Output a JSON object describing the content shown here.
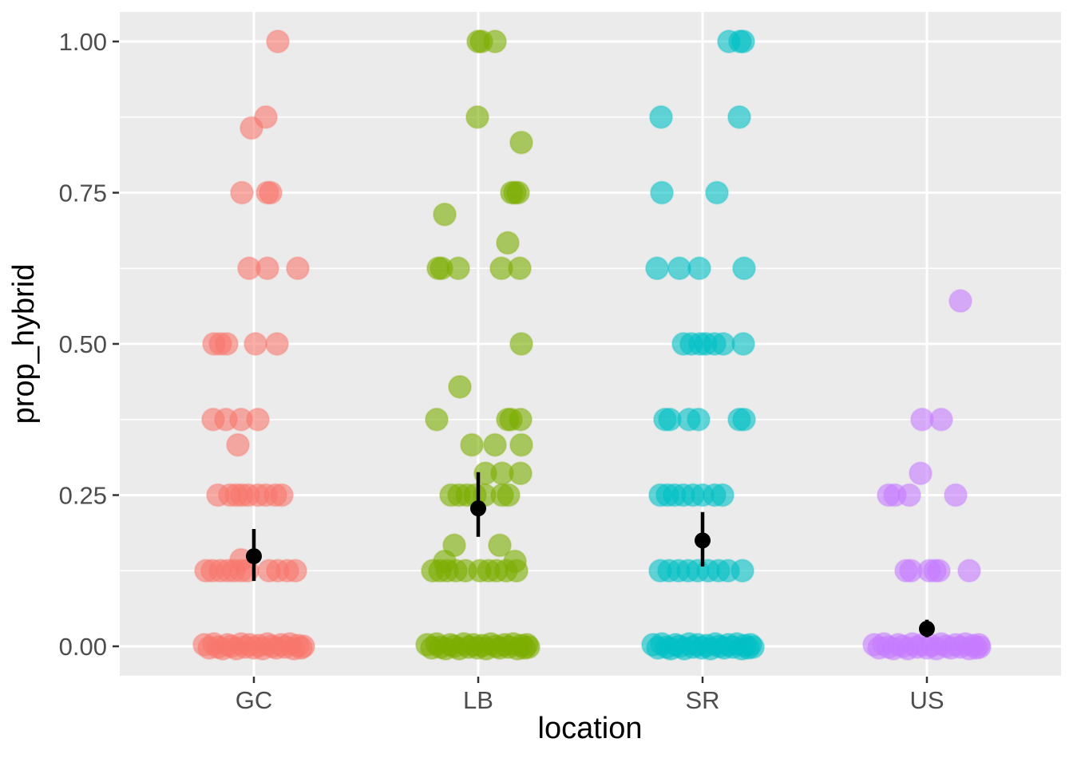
{
  "chart_data": {
    "type": "scatter",
    "subtype": "jittered-dotplot-with-mean-pointrange",
    "title": "",
    "xlabel": "location",
    "ylabel": "prop_hybrid",
    "categories": [
      "GC",
      "LB",
      "SR",
      "US"
    ],
    "y_ticks": [
      "1.00",
      "0.75",
      "0.50",
      "0.25",
      "0.00"
    ],
    "y_tick_values": [
      1.0,
      0.75,
      0.5,
      0.25,
      0.0
    ],
    "y_minor_values": [
      0.875,
      0.625,
      0.375,
      0.125
    ],
    "ylim": [
      -0.049,
      1.049
    ],
    "grid": {
      "major": true,
      "minor": true,
      "panel_background": "#EBEBEB",
      "grid_color": "#FFFFFF"
    },
    "legend": "none",
    "point_alpha": 0.6,
    "series": [
      {
        "name": "GC",
        "color": "#F8766D",
        "mean": {
          "value": 0.149,
          "low": 0.108,
          "high": 0.194
        },
        "points": [
          [
            1.0,
            30,
            0
          ],
          [
            0.875,
            15,
            0
          ],
          [
            0.857,
            -3,
            0
          ],
          [
            0.75,
            -15,
            0
          ],
          [
            0.75,
            17,
            0
          ],
          [
            0.75,
            21,
            0
          ],
          [
            0.625,
            -6,
            0
          ],
          [
            0.625,
            17,
            0
          ],
          [
            0.625,
            55,
            0
          ],
          [
            0.5,
            -50,
            0
          ],
          [
            0.5,
            -42,
            0
          ],
          [
            0.5,
            -34,
            0
          ],
          [
            0.5,
            2,
            0
          ],
          [
            0.5,
            29,
            0
          ],
          [
            0.375,
            -51,
            0
          ],
          [
            0.375,
            -35,
            0
          ],
          [
            0.375,
            -16,
            0
          ],
          [
            0.375,
            5,
            0
          ],
          [
            0.333,
            -20,
            0
          ],
          [
            0.25,
            -45,
            0
          ],
          [
            0.25,
            -30,
            0
          ],
          [
            0.25,
            -22,
            0
          ],
          [
            0.25,
            -15,
            0
          ],
          [
            0.25,
            -7,
            0
          ],
          [
            0.25,
            5,
            0
          ],
          [
            0.25,
            15,
            0
          ],
          [
            0.25,
            27,
            0
          ],
          [
            0.25,
            35,
            0
          ],
          [
            0.143,
            -16,
            0
          ],
          [
            0.125,
            -60,
            0
          ],
          [
            0.125,
            -52,
            0
          ],
          [
            0.125,
            -42,
            0
          ],
          [
            0.125,
            -33,
            0
          ],
          [
            0.125,
            -25,
            0
          ],
          [
            0.125,
            -16,
            0
          ],
          [
            0.125,
            -8,
            0
          ],
          [
            0.125,
            19,
            0
          ],
          [
            0.125,
            30,
            0
          ],
          [
            0.125,
            42,
            0
          ],
          [
            0.125,
            52,
            0
          ],
          [
            0,
            -62,
            -2
          ],
          [
            0,
            -56,
            2
          ],
          [
            0,
            -50,
            -3
          ],
          [
            0,
            -45,
            1
          ],
          [
            0,
            -39,
            3
          ],
          [
            0,
            -33,
            -2
          ],
          [
            0,
            -28,
            0
          ],
          [
            0,
            -22,
            3
          ],
          [
            0,
            -16,
            -3
          ],
          [
            0,
            -11,
            1
          ],
          [
            0,
            -5,
            -2
          ],
          [
            0,
            0,
            2
          ],
          [
            0,
            6,
            -1
          ],
          [
            0,
            11,
            3
          ],
          [
            0,
            17,
            -3
          ],
          [
            0,
            23,
            0
          ],
          [
            0,
            28,
            2
          ],
          [
            0,
            34,
            -2
          ],
          [
            0,
            39,
            1
          ],
          [
            0,
            45,
            -3
          ],
          [
            0,
            50,
            3
          ],
          [
            0,
            55,
            -1
          ],
          [
            0,
            59,
            2
          ],
          [
            0,
            62,
            0
          ]
        ]
      },
      {
        "name": "LB",
        "color": "#7CAE00",
        "mean": {
          "value": 0.228,
          "low": 0.181,
          "high": 0.288
        },
        "points": [
          [
            1.0,
            0,
            0
          ],
          [
            1.0,
            4,
            0
          ],
          [
            1.0,
            21,
            0
          ],
          [
            0.875,
            -1,
            0
          ],
          [
            0.833,
            54,
            0
          ],
          [
            0.75,
            42,
            0
          ],
          [
            0.75,
            46,
            0
          ],
          [
            0.75,
            50,
            0
          ],
          [
            0.714,
            -42,
            0
          ],
          [
            0.667,
            37,
            0
          ],
          [
            0.625,
            -50,
            0
          ],
          [
            0.625,
            -46,
            0
          ],
          [
            0.625,
            -25,
            0
          ],
          [
            0.625,
            29,
            0
          ],
          [
            0.625,
            52,
            0
          ],
          [
            0.5,
            54,
            0
          ],
          [
            0.429,
            -23,
            0
          ],
          [
            0.375,
            -52,
            0
          ],
          [
            0.375,
            37,
            0
          ],
          [
            0.375,
            41,
            0
          ],
          [
            0.375,
            53,
            0
          ],
          [
            0.333,
            -8,
            0
          ],
          [
            0.333,
            21,
            0
          ],
          [
            0.333,
            54,
            0
          ],
          [
            0.286,
            9,
            0
          ],
          [
            0.286,
            30,
            0
          ],
          [
            0.286,
            53,
            0
          ],
          [
            0.25,
            -34,
            0
          ],
          [
            0.25,
            -24,
            0
          ],
          [
            0.25,
            -14,
            0
          ],
          [
            0.25,
            -4,
            0
          ],
          [
            0.25,
            8,
            0
          ],
          [
            0.25,
            30,
            0
          ],
          [
            0.25,
            38,
            0
          ],
          [
            0.167,
            -30,
            0
          ],
          [
            0.167,
            27,
            0
          ],
          [
            0.143,
            -42,
            2
          ],
          [
            0.143,
            46,
            2
          ],
          [
            0.125,
            -57,
            0
          ],
          [
            0.125,
            -48,
            0
          ],
          [
            0.125,
            -39,
            0
          ],
          [
            0.125,
            -28,
            0
          ],
          [
            0.125,
            -16,
            0
          ],
          [
            0.125,
            2,
            0
          ],
          [
            0.125,
            13,
            0
          ],
          [
            0.125,
            23,
            0
          ],
          [
            0.125,
            35,
            0
          ],
          [
            0.125,
            48,
            0
          ],
          [
            0,
            -64,
            -2
          ],
          [
            0,
            -58,
            2
          ],
          [
            0,
            -52,
            -3
          ],
          [
            0,
            -47,
            1
          ],
          [
            0,
            -41,
            3
          ],
          [
            0,
            -35,
            -2
          ],
          [
            0,
            -30,
            0
          ],
          [
            0,
            -24,
            3
          ],
          [
            0,
            -18,
            -3
          ],
          [
            0,
            -12,
            1
          ],
          [
            0,
            -6,
            -2
          ],
          [
            0,
            -1,
            2
          ],
          [
            0,
            5,
            -1
          ],
          [
            0,
            10,
            3
          ],
          [
            0,
            16,
            -3
          ],
          [
            0,
            22,
            0
          ],
          [
            0,
            27,
            2
          ],
          [
            0,
            33,
            -2
          ],
          [
            0,
            38,
            1
          ],
          [
            0,
            44,
            -3
          ],
          [
            0,
            49,
            3
          ],
          [
            0,
            54,
            -1
          ],
          [
            0,
            58,
            2
          ],
          [
            0,
            61,
            -2
          ],
          [
            0,
            63,
            1
          ]
        ]
      },
      {
        "name": "SR",
        "color": "#00BFC4",
        "mean": {
          "value": 0.175,
          "low": 0.132,
          "high": 0.222
        },
        "points": [
          [
            1.0,
            33,
            0
          ],
          [
            1.0,
            47,
            0
          ],
          [
            1.0,
            51,
            0
          ],
          [
            0.875,
            -52,
            0
          ],
          [
            0.875,
            46,
            0
          ],
          [
            0.75,
            -51,
            0
          ],
          [
            0.75,
            18,
            0
          ],
          [
            0.625,
            -57,
            0
          ],
          [
            0.625,
            -29,
            0
          ],
          [
            0.625,
            -4,
            0
          ],
          [
            0.625,
            52,
            0
          ],
          [
            0.5,
            -24,
            0
          ],
          [
            0.5,
            -14,
            0
          ],
          [
            0.5,
            -3,
            0
          ],
          [
            0.5,
            4,
            0
          ],
          [
            0.5,
            15,
            0
          ],
          [
            0.5,
            26,
            0
          ],
          [
            0.5,
            51,
            0
          ],
          [
            0.375,
            -47,
            0
          ],
          [
            0.375,
            -41,
            0
          ],
          [
            0.375,
            -17,
            0
          ],
          [
            0.375,
            -5,
            0
          ],
          [
            0.375,
            46,
            0
          ],
          [
            0.375,
            52,
            0
          ],
          [
            0.25,
            -53,
            0
          ],
          [
            0.25,
            -44,
            0
          ],
          [
            0.25,
            -35,
            0
          ],
          [
            0.25,
            -24,
            0
          ],
          [
            0.25,
            -12,
            0
          ],
          [
            0.25,
            0,
            0
          ],
          [
            0.25,
            15,
            0
          ],
          [
            0.25,
            25,
            0
          ],
          [
            0.125,
            -53,
            0
          ],
          [
            0.125,
            -42,
            0
          ],
          [
            0.125,
            -30,
            0
          ],
          [
            0.125,
            -18,
            0
          ],
          [
            0.125,
            -6,
            0
          ],
          [
            0.125,
            7,
            0
          ],
          [
            0.125,
            20,
            0
          ],
          [
            0.125,
            32,
            0
          ],
          [
            0.125,
            50,
            0
          ],
          [
            0,
            -62,
            -2
          ],
          [
            0,
            -56,
            2
          ],
          [
            0,
            -51,
            -3
          ],
          [
            0,
            -45,
            1
          ],
          [
            0,
            -40,
            3
          ],
          [
            0,
            -34,
            -2
          ],
          [
            0,
            -29,
            0
          ],
          [
            0,
            -23,
            3
          ],
          [
            0,
            -17,
            -3
          ],
          [
            0,
            -12,
            1
          ],
          [
            0,
            -6,
            -2
          ],
          [
            0,
            -1,
            2
          ],
          [
            0,
            5,
            -1
          ],
          [
            0,
            10,
            3
          ],
          [
            0,
            16,
            -3
          ],
          [
            0,
            21,
            0
          ],
          [
            0,
            27,
            2
          ],
          [
            0,
            32,
            -2
          ],
          [
            0,
            38,
            1
          ],
          [
            0,
            43,
            -3
          ],
          [
            0,
            49,
            3
          ],
          [
            0,
            53,
            -1
          ],
          [
            0,
            57,
            2
          ],
          [
            0,
            60,
            -2
          ],
          [
            0,
            63,
            1
          ]
        ]
      },
      {
        "name": "US",
        "color": "#C77CFF",
        "mean": {
          "value": 0.029,
          "low": 0.015,
          "high": 0.044
        },
        "points": [
          [
            0.571,
            42,
            0
          ],
          [
            0.375,
            -6,
            0
          ],
          [
            0.375,
            18,
            0
          ],
          [
            0.286,
            -8,
            0
          ],
          [
            0.25,
            -48,
            0
          ],
          [
            0.25,
            -40,
            0
          ],
          [
            0.25,
            -22,
            0
          ],
          [
            0.25,
            36,
            0
          ],
          [
            0.125,
            -26,
            0
          ],
          [
            0.125,
            -20,
            0
          ],
          [
            0.125,
            3,
            0
          ],
          [
            0.125,
            10,
            0
          ],
          [
            0.125,
            15,
            0
          ],
          [
            0.125,
            53,
            0
          ],
          [
            0,
            -66,
            -2
          ],
          [
            0,
            -60,
            2
          ],
          [
            0,
            -54,
            -3
          ],
          [
            0,
            -48,
            1
          ],
          [
            0,
            -42,
            3
          ],
          [
            0,
            -36,
            -2
          ],
          [
            0,
            -30,
            0
          ],
          [
            0,
            -24,
            3
          ],
          [
            0,
            -18,
            -3
          ],
          [
            0,
            -12,
            1
          ],
          [
            0,
            -6,
            -2
          ],
          [
            0,
            0,
            2
          ],
          [
            0,
            6,
            -1
          ],
          [
            0,
            12,
            3
          ],
          [
            0,
            18,
            -3
          ],
          [
            0,
            24,
            0
          ],
          [
            0,
            30,
            2
          ],
          [
            0,
            36,
            -2
          ],
          [
            0,
            42,
            1
          ],
          [
            0,
            48,
            -3
          ],
          [
            0,
            53,
            3
          ],
          [
            0,
            58,
            -1
          ],
          [
            0,
            62,
            2
          ],
          [
            0,
            65,
            -2
          ],
          [
            0,
            66,
            1
          ]
        ]
      }
    ]
  },
  "style": {
    "panel_bg": "#EBEBEB",
    "grid_color": "#FFFFFF",
    "tick_color": "#333333",
    "tick_label_color": "#4d4d4d",
    "axis_title_color": "#000000",
    "mean_color": "#000000"
  }
}
